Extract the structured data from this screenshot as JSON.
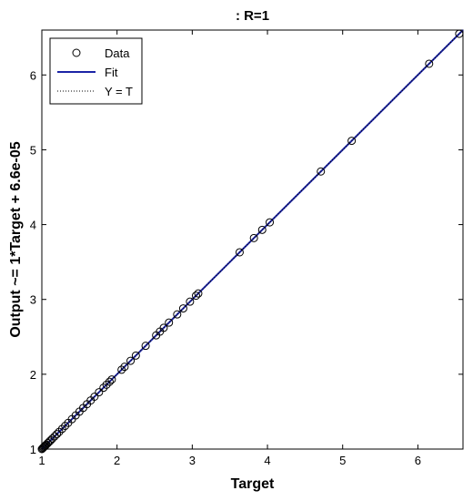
{
  "chart_data": {
    "type": "scatter",
    "title": ": R=1",
    "xlabel": "Target",
    "ylabel": "Output ~= 1*Target + 6.6e-05",
    "xlim": [
      1,
      6.6
    ],
    "ylim": [
      1,
      6.6
    ],
    "xticks": [
      1,
      2,
      3,
      4,
      5,
      6
    ],
    "yticks": [
      1,
      2,
      3,
      4,
      5,
      6
    ],
    "grid": false,
    "legend": {
      "placement": "top-left",
      "entries": [
        {
          "label": "Data",
          "style": "circle"
        },
        {
          "label": "Fit",
          "style": "solid-line"
        },
        {
          "label": "Y = T",
          "style": "dotted-line"
        }
      ]
    },
    "colors": {
      "data_marker": "#000000",
      "fit_line": "#1c24a6",
      "identity_line": "#000000"
    },
    "series": [
      {
        "name": "Data",
        "x": [
          1.0,
          1.01,
          1.02,
          1.03,
          1.04,
          1.05,
          1.06,
          1.08,
          1.1,
          1.12,
          1.14,
          1.17,
          1.2,
          1.23,
          1.27,
          1.31,
          1.35,
          1.4,
          1.45,
          1.5,
          1.55,
          1.6,
          1.65,
          1.7,
          1.76,
          1.82,
          1.86,
          1.9,
          1.93,
          2.06,
          2.1,
          2.18,
          2.25,
          2.38,
          2.52,
          2.57,
          2.62,
          2.69,
          2.8,
          2.88,
          2.97,
          3.05,
          3.08,
          3.63,
          3.82,
          3.93,
          4.03,
          4.71,
          5.12,
          6.15,
          6.55
        ],
        "y": [
          1.0,
          1.01,
          1.02,
          1.03,
          1.04,
          1.05,
          1.06,
          1.08,
          1.1,
          1.12,
          1.14,
          1.17,
          1.2,
          1.23,
          1.27,
          1.31,
          1.35,
          1.4,
          1.45,
          1.5,
          1.55,
          1.6,
          1.65,
          1.7,
          1.76,
          1.82,
          1.86,
          1.9,
          1.93,
          2.06,
          2.1,
          2.18,
          2.25,
          2.38,
          2.52,
          2.57,
          2.62,
          2.69,
          2.8,
          2.88,
          2.97,
          3.05,
          3.08,
          3.63,
          3.82,
          3.93,
          4.03,
          4.71,
          5.12,
          6.15,
          6.55
        ]
      },
      {
        "name": "Fit",
        "x": [
          1,
          6.6
        ],
        "y": [
          1.000066,
          6.600066
        ]
      },
      {
        "name": "Y = T",
        "x": [
          1,
          6.6
        ],
        "y": [
          1,
          6.6
        ]
      }
    ]
  }
}
